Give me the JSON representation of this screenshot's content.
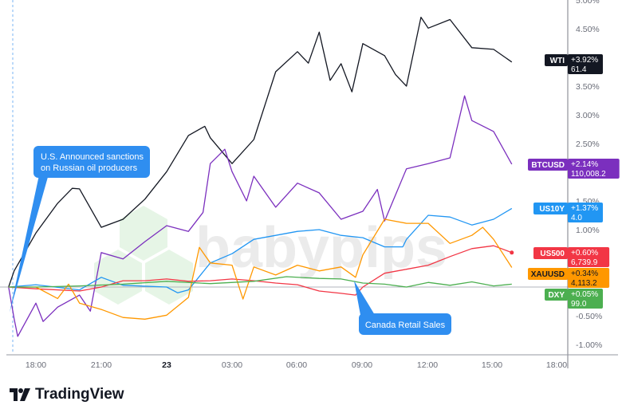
{
  "chart_data": {
    "type": "line",
    "title": "",
    "xlabel": "",
    "ylabel": "",
    "ylim": [
      -1.2,
      5.0
    ],
    "grid": false,
    "y_ticks": [
      "5.00%",
      "4.50%",
      "3.50%",
      "3.00%",
      "2.50%",
      "1.50%",
      "1.00%",
      "-0.50%",
      "-1.00%"
    ],
    "x_ticks": [
      "18:00",
      "21:00",
      "23",
      "03:00",
      "06:00",
      "09:00",
      "12:00",
      "15:00",
      "18:00"
    ],
    "series": [
      {
        "name": "WTI",
        "color": "#131722",
        "change": "+3.92%",
        "price": "61.4",
        "points": [
          [
            "22 16:45",
            0
          ],
          [
            "22 17:00",
            0.28
          ],
          [
            "22 18:00",
            0.94
          ],
          [
            "22 19:00",
            1.46
          ],
          [
            "22 19:40",
            1.72
          ],
          [
            "22 20:00",
            1.71
          ],
          [
            "22 21:00",
            1.04
          ],
          [
            "22 22:00",
            1.18
          ],
          [
            "22 23:00",
            1.53
          ],
          [
            "23 00:00",
            2.01
          ],
          [
            "23 01:00",
            2.64
          ],
          [
            "23 01:45",
            2.8
          ],
          [
            "23 02:00",
            2.6
          ],
          [
            "23 03:00",
            2.15
          ],
          [
            "23 04:00",
            2.57
          ],
          [
            "23 05:00",
            3.75
          ],
          [
            "23 06:00",
            4.1
          ],
          [
            "23 06:30",
            3.9
          ],
          [
            "23 07:00",
            4.44
          ],
          [
            "23 07:30",
            3.6
          ],
          [
            "23 08:00",
            3.89
          ],
          [
            "23 08:30",
            3.4
          ],
          [
            "23 09:00",
            4.24
          ],
          [
            "23 10:00",
            4.03
          ],
          [
            "23 10:30",
            3.7
          ],
          [
            "23 11:00",
            3.5
          ],
          [
            "23 11:40",
            4.7
          ],
          [
            "23 12:00",
            4.51
          ],
          [
            "23 13:00",
            4.66
          ],
          [
            "23 14:00",
            4.17
          ],
          [
            "23 15:00",
            4.14
          ],
          [
            "23 15:50",
            3.92
          ]
        ]
      },
      {
        "name": "BTCUSD",
        "color": "#7b2fbe",
        "change": "+2.14%",
        "price": "110,008.2",
        "points": [
          [
            "22 16:45",
            0
          ],
          [
            "22 17:00",
            -0.55
          ],
          [
            "22 17:10",
            -0.86
          ],
          [
            "22 18:00",
            -0.28
          ],
          [
            "22 18:20",
            -0.6
          ],
          [
            "22 19:00",
            -0.35
          ],
          [
            "22 20:00",
            -0.14
          ],
          [
            "22 20:30",
            -0.42
          ],
          [
            "22 21:00",
            0.6
          ],
          [
            "22 22:00",
            0.49
          ],
          [
            "22 23:00",
            0.79
          ],
          [
            "23 00:00",
            1.07
          ],
          [
            "23 01:00",
            0.97
          ],
          [
            "23 01:40",
            1.3
          ],
          [
            "23 02:00",
            2.15
          ],
          [
            "23 02:40",
            2.4
          ],
          [
            "23 03:00",
            2.01
          ],
          [
            "23 03:40",
            1.5
          ],
          [
            "23 04:00",
            1.93
          ],
          [
            "23 05:00",
            1.39
          ],
          [
            "23 06:00",
            1.81
          ],
          [
            "23 07:00",
            1.64
          ],
          [
            "23 08:00",
            1.18
          ],
          [
            "23 09:00",
            1.32
          ],
          [
            "23 09:40",
            1.7
          ],
          [
            "23 10:00",
            1.15
          ],
          [
            "23 11:00",
            2.06
          ],
          [
            "23 12:00",
            2.15
          ],
          [
            "23 13:00",
            2.25
          ],
          [
            "23 13:40",
            3.33
          ],
          [
            "23 14:00",
            2.9
          ],
          [
            "23 15:00",
            2.71
          ],
          [
            "23 15:50",
            2.14
          ]
        ]
      },
      {
        "name": "US10Y",
        "color": "#2196f3",
        "change": "+1.37%",
        "price": "4.0",
        "points": [
          [
            "22 16:45",
            0
          ],
          [
            "22 18:00",
            0.04
          ],
          [
            "22 20:00",
            -0.05
          ],
          [
            "22 21:00",
            0.17
          ],
          [
            "22 22:00",
            0.03
          ],
          [
            "23 00:00",
            0.0
          ],
          [
            "23 00:30",
            -0.1
          ],
          [
            "23 01:00",
            -0.05
          ],
          [
            "23 02:00",
            0.42
          ],
          [
            "23 03:00",
            0.58
          ],
          [
            "23 04:00",
            0.83
          ],
          [
            "23 05:00",
            0.9
          ],
          [
            "23 06:00",
            0.97
          ],
          [
            "23 07:00",
            1.0
          ],
          [
            "23 08:00",
            0.9
          ],
          [
            "23 09:00",
            0.86
          ],
          [
            "23 10:00",
            0.7
          ],
          [
            "23 10:50",
            0.7
          ],
          [
            "23 11:00",
            0.83
          ],
          [
            "23 12:00",
            1.25
          ],
          [
            "23 13:00",
            1.22
          ],
          [
            "23 14:00",
            1.08
          ],
          [
            "23 15:00",
            1.18
          ],
          [
            "23 15:50",
            1.37
          ]
        ]
      },
      {
        "name": "US500",
        "color": "#f23645",
        "change": "+0.60%",
        "price": "6,739.9",
        "points": [
          [
            "22 16:45",
            0
          ],
          [
            "22 18:00",
            -0.03
          ],
          [
            "22 20:00",
            -0.07
          ],
          [
            "22 21:00",
            0.0
          ],
          [
            "22 22:00",
            0.11
          ],
          [
            "22 23:00",
            0.11
          ],
          [
            "23 00:00",
            0.14
          ],
          [
            "23 01:00",
            0.1
          ],
          [
            "23 02:00",
            0.11
          ],
          [
            "23 03:00",
            0.14
          ],
          [
            "23 04:00",
            0.11
          ],
          [
            "23 05:00",
            0.07
          ],
          [
            "23 06:00",
            0.04
          ],
          [
            "23 07:00",
            -0.07
          ],
          [
            "23 08:00",
            -0.11
          ],
          [
            "23 08:40",
            -0.14
          ],
          [
            "23 09:00",
            0.0
          ],
          [
            "23 10:00",
            0.24
          ],
          [
            "23 11:00",
            0.31
          ],
          [
            "23 12:00",
            0.38
          ],
          [
            "23 13:00",
            0.53
          ],
          [
            "23 14:00",
            0.67
          ],
          [
            "23 15:00",
            0.72
          ],
          [
            "23 15:50",
            0.6
          ]
        ]
      },
      {
        "name": "XAUUSD",
        "color": "#ff9800",
        "change": "+0.34%",
        "price": "4,113.2",
        "points": [
          [
            "22 16:45",
            0
          ],
          [
            "22 18:00",
            0.0
          ],
          [
            "22 19:00",
            -0.2
          ],
          [
            "22 19:30",
            0.05
          ],
          [
            "22 20:00",
            -0.28
          ],
          [
            "22 21:00",
            -0.39
          ],
          [
            "22 22:00",
            -0.53
          ],
          [
            "22 23:00",
            -0.56
          ],
          [
            "23 00:00",
            -0.49
          ],
          [
            "23 01:00",
            -0.18
          ],
          [
            "23 01:30",
            0.69
          ],
          [
            "23 02:00",
            0.42
          ],
          [
            "23 03:00",
            0.38
          ],
          [
            "23 03:30",
            -0.21
          ],
          [
            "23 04:00",
            0.35
          ],
          [
            "23 05:00",
            0.21
          ],
          [
            "23 06:00",
            0.38
          ],
          [
            "23 07:00",
            0.28
          ],
          [
            "23 08:00",
            0.35
          ],
          [
            "23 08:40",
            0.17
          ],
          [
            "23 09:00",
            0.56
          ],
          [
            "23 10:00",
            1.18
          ],
          [
            "23 11:00",
            1.11
          ],
          [
            "23 12:00",
            1.11
          ],
          [
            "23 13:00",
            0.76
          ],
          [
            "23 14:00",
            0.9
          ],
          [
            "23 14:30",
            1.04
          ],
          [
            "23 15:00",
            0.83
          ],
          [
            "23 15:50",
            0.34
          ]
        ]
      },
      {
        "name": "DXY",
        "color": "#4caf50",
        "change": "+0.05%",
        "price": "99.0",
        "points": [
          [
            "22 16:45",
            0
          ],
          [
            "22 18:00",
            0.0
          ],
          [
            "22 20:00",
            0.02
          ],
          [
            "22 22:00",
            0.05
          ],
          [
            "23 00:00",
            0.1
          ],
          [
            "23 02:00",
            0.06
          ],
          [
            "23 04:00",
            0.1
          ],
          [
            "23 05:30",
            0.18
          ],
          [
            "23 07:00",
            0.15
          ],
          [
            "23 08:00",
            0.14
          ],
          [
            "23 09:00",
            0.07
          ],
          [
            "23 10:00",
            0.05
          ],
          [
            "23 11:00",
            0.0
          ],
          [
            "23 12:00",
            0.08
          ],
          [
            "23 13:00",
            0.03
          ],
          [
            "23 14:00",
            0.09
          ],
          [
            "23 15:00",
            0.02
          ],
          [
            "23 15:50",
            0.05
          ]
        ]
      }
    ],
    "annotations": [
      {
        "text": "U.S. Announced sanctions on Russian oil producers",
        "line1": "U.S. Announced sanctions",
        "line2": "on Russian oil producers",
        "at": "22 16:55"
      },
      {
        "text": "Canada Retail Sales",
        "at": "23 08:30"
      }
    ]
  },
  "watermark": "babypips",
  "brand": "TradingView"
}
